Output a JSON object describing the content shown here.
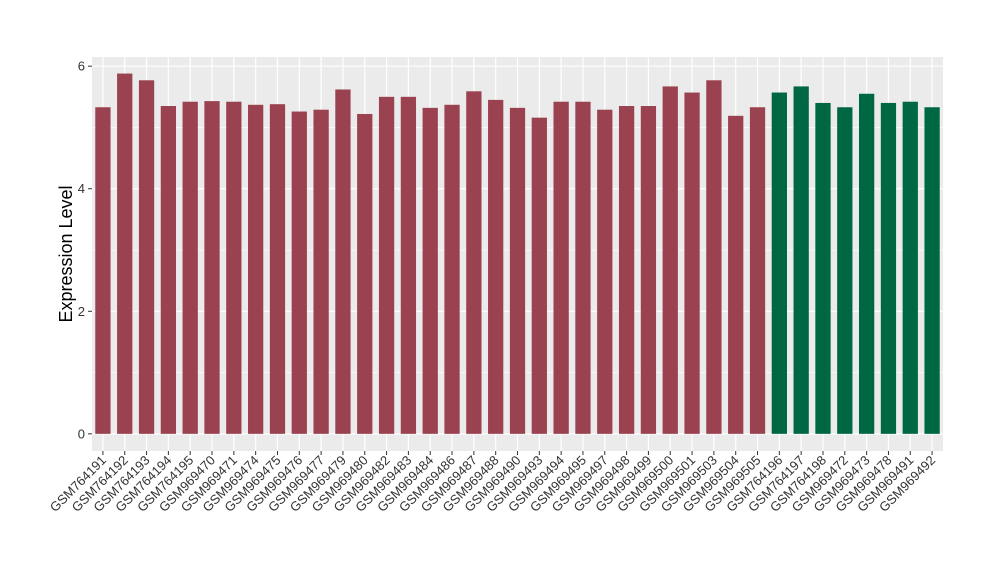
{
  "chart_data": {
    "type": "bar",
    "title": "",
    "xlabel": "",
    "ylabel": "Expression Level",
    "ylim": [
      -0.28,
      6.15
    ],
    "yticks": [
      0,
      2,
      4,
      6
    ],
    "grid": true,
    "background_color": "#ebebeb",
    "gridline_color": "#ffffff",
    "group_colors": {
      "first": "#9b4250",
      "second": "#006743"
    },
    "categories": [
      "GSM764191",
      "GSM764192",
      "GSM764193",
      "GSM764194",
      "GSM764195",
      "GSM969470",
      "GSM969471",
      "GSM969474",
      "GSM969475",
      "GSM969476",
      "GSM969477",
      "GSM969479",
      "GSM969480",
      "GSM969482",
      "GSM969483",
      "GSM969484",
      "GSM969486",
      "GSM969487",
      "GSM969488",
      "GSM969490",
      "GSM969493",
      "GSM969494",
      "GSM969495",
      "GSM969497",
      "GSM969498",
      "GSM969499",
      "GSM969500",
      "GSM969501",
      "GSM969503",
      "GSM969504",
      "GSM969505",
      "GSM764196",
      "GSM764197",
      "GSM764198",
      "GSM969472",
      "GSM969473",
      "GSM969478",
      "GSM969491",
      "GSM969492"
    ],
    "values": [
      5.33,
      5.88,
      5.77,
      5.35,
      5.42,
      5.43,
      5.42,
      5.37,
      5.38,
      5.26,
      5.29,
      5.62,
      5.22,
      5.5,
      5.5,
      5.32,
      5.37,
      5.59,
      5.45,
      5.32,
      5.16,
      5.42,
      5.42,
      5.29,
      5.35,
      5.35,
      5.67,
      5.57,
      5.77,
      5.19,
      5.33,
      5.57,
      5.67,
      5.4,
      5.33,
      5.55,
      5.4,
      5.42,
      5.33
    ],
    "groups": [
      "first",
      "first",
      "first",
      "first",
      "first",
      "first",
      "first",
      "first",
      "first",
      "first",
      "first",
      "first",
      "first",
      "first",
      "first",
      "first",
      "first",
      "first",
      "first",
      "first",
      "first",
      "first",
      "first",
      "first",
      "first",
      "first",
      "first",
      "first",
      "first",
      "first",
      "first",
      "second",
      "second",
      "second",
      "second",
      "second",
      "second",
      "second",
      "second"
    ]
  }
}
